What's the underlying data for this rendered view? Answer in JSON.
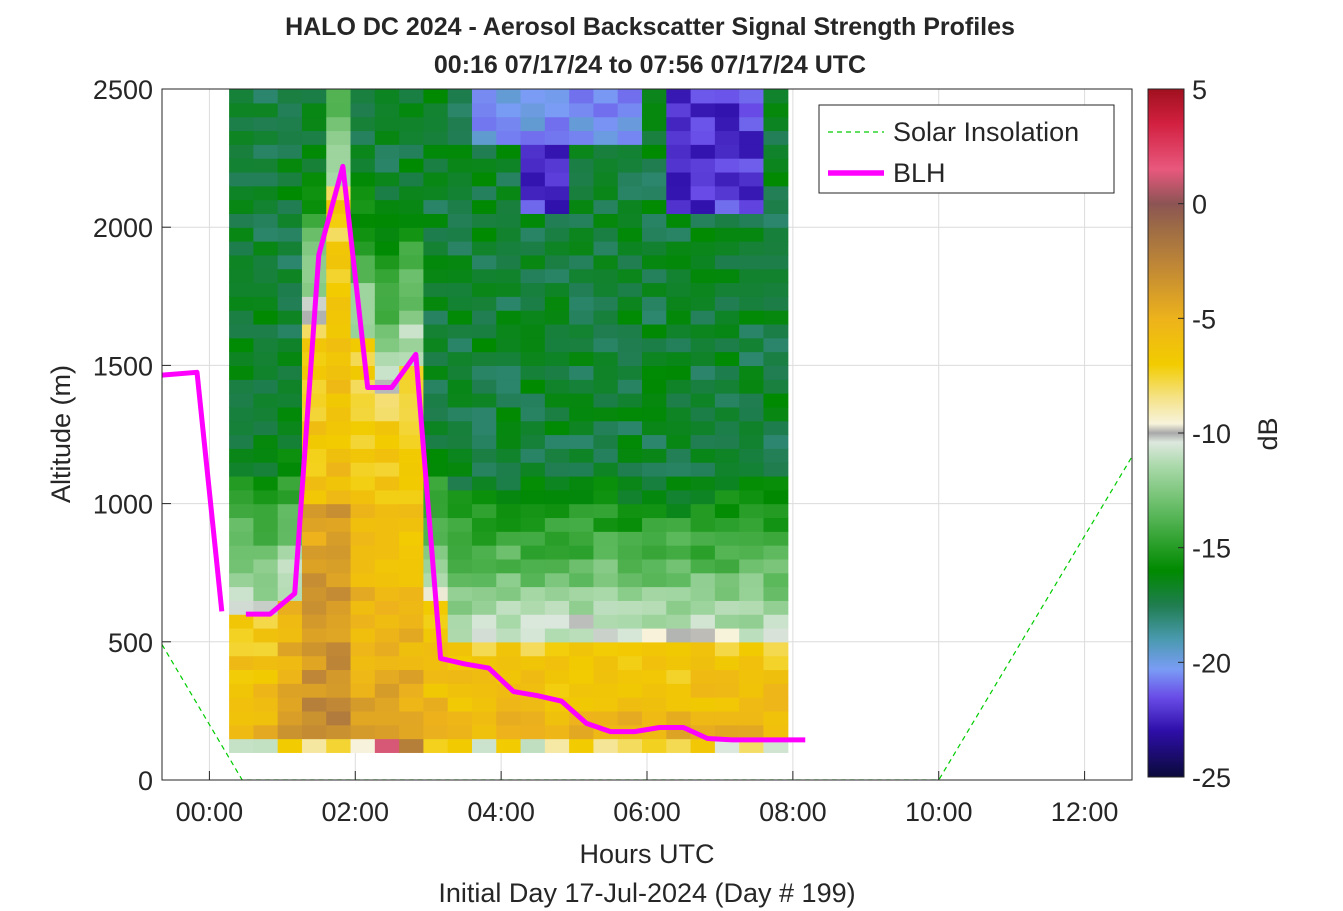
{
  "chart_data": {
    "type": "heatmap",
    "title": "HALO DC 2024 - Aerosol Backscatter Signal Strength Profiles",
    "subtitle": "00:16 07/17/24 to 07:56 07/17/24  UTC",
    "xlabel": "Hours UTC",
    "xlabel2": "Initial Day 17-Jul-2024 (Day # 199)",
    "ylabel": "Altitude (m)",
    "colorbar_label": "dB",
    "xlim_hours": [
      -0.65,
      12.65
    ],
    "ylim": [
      0,
      2500
    ],
    "grid": true,
    "legend_position": "top-right",
    "x_ticks": [
      {
        "value": 0,
        "label": "00:00"
      },
      {
        "value": 2,
        "label": "02:00"
      },
      {
        "value": 4,
        "label": "04:00"
      },
      {
        "value": 6,
        "label": "06:00"
      },
      {
        "value": 8,
        "label": "08:00"
      },
      {
        "value": 10,
        "label": "10:00"
      },
      {
        "value": 12,
        "label": "12:00"
      }
    ],
    "y_ticks": [
      {
        "value": 0,
        "label": "0"
      },
      {
        "value": 500,
        "label": "500"
      },
      {
        "value": 1000,
        "label": "1000"
      },
      {
        "value": 1500,
        "label": "1500"
      },
      {
        "value": 2000,
        "label": "2000"
      },
      {
        "value": 2500,
        "label": "2500"
      }
    ],
    "colorbar": {
      "range_db": [
        -25,
        5
      ],
      "ticks": [
        {
          "value": 5,
          "label": "5"
        },
        {
          "value": 0,
          "label": "0"
        },
        {
          "value": -5,
          "label": "-5"
        },
        {
          "value": -10,
          "label": "-10"
        },
        {
          "value": -15,
          "label": "-15"
        },
        {
          "value": -20,
          "label": "-20"
        },
        {
          "value": -25,
          "label": "-25"
        }
      ],
      "stops": [
        {
          "db": -25,
          "color": "#0a0a3a"
        },
        {
          "db": -23,
          "color": "#2e0ea8"
        },
        {
          "db": -21.5,
          "color": "#6a4de8"
        },
        {
          "db": -20.3,
          "color": "#7a9cf5"
        },
        {
          "db": -19,
          "color": "#4a9ab0"
        },
        {
          "db": -17.5,
          "color": "#1f7d4f"
        },
        {
          "db": -16,
          "color": "#008a00"
        },
        {
          "db": -13.5,
          "color": "#5cb85c"
        },
        {
          "db": -11.5,
          "color": "#a8d8a8"
        },
        {
          "db": -10.4,
          "color": "#dde8de"
        },
        {
          "db": -10,
          "color": "#a8a8a8"
        },
        {
          "db": -9.6,
          "color": "#f7f3dc"
        },
        {
          "db": -8.5,
          "color": "#f5e38a"
        },
        {
          "db": -7,
          "color": "#f2cc00"
        },
        {
          "db": -5,
          "color": "#edb21c"
        },
        {
          "db": -3,
          "color": "#c58c33"
        },
        {
          "db": -1,
          "color": "#9c6a46"
        },
        {
          "db": 0,
          "color": "#8c5454"
        },
        {
          "db": 1.5,
          "color": "#e8587d"
        },
        {
          "db": 3.5,
          "color": "#d22040"
        },
        {
          "db": 5,
          "color": "#a0101e"
        }
      ]
    },
    "heatmap": {
      "x_start_hours": 0.27,
      "x_end_hours": 7.93,
      "y_start_m": 100,
      "y_end_m": 2500,
      "cols": 23,
      "rows": 48,
      "note_values": "signal strength in dB, estimated from colors"
    },
    "series": [
      {
        "name": "Solar Insolation",
        "color": "#00cc00",
        "style": "dashed",
        "x": [
          -0.65,
          0.45,
          10.0,
          12.65
        ],
        "y": [
          490,
          0,
          0,
          1170
        ]
      },
      {
        "name": "BLH",
        "color": "#ff00ff",
        "style": "solid",
        "segments": [
          {
            "x": [
              -0.65,
              -0.17,
              0.17
            ],
            "y": [
              1465,
              1475,
              610
            ]
          },
          {
            "x": [
              0.5,
              0.83,
              1.17,
              1.5,
              1.83,
              2.17,
              2.5,
              2.83,
              3.17,
              3.5,
              3.83,
              4.17,
              4.5,
              4.83,
              5.17,
              5.5,
              5.83,
              6.17,
              6.5,
              6.83,
              7.17,
              7.5,
              7.83,
              8.17
            ],
            "y": [
              600,
              600,
              675,
              1900,
              2220,
              1420,
              1420,
              1540,
              440,
              420,
              405,
              320,
              305,
              285,
              205,
              175,
              175,
              190,
              190,
              150,
              145,
              145,
              145,
              145
            ]
          }
        ]
      }
    ],
    "legend": [
      {
        "label": "Solar Insolation",
        "color": "#00cc00",
        "style": "dashed"
      },
      {
        "label": "BLH",
        "color": "#ff00ff",
        "style": "solid"
      }
    ]
  }
}
